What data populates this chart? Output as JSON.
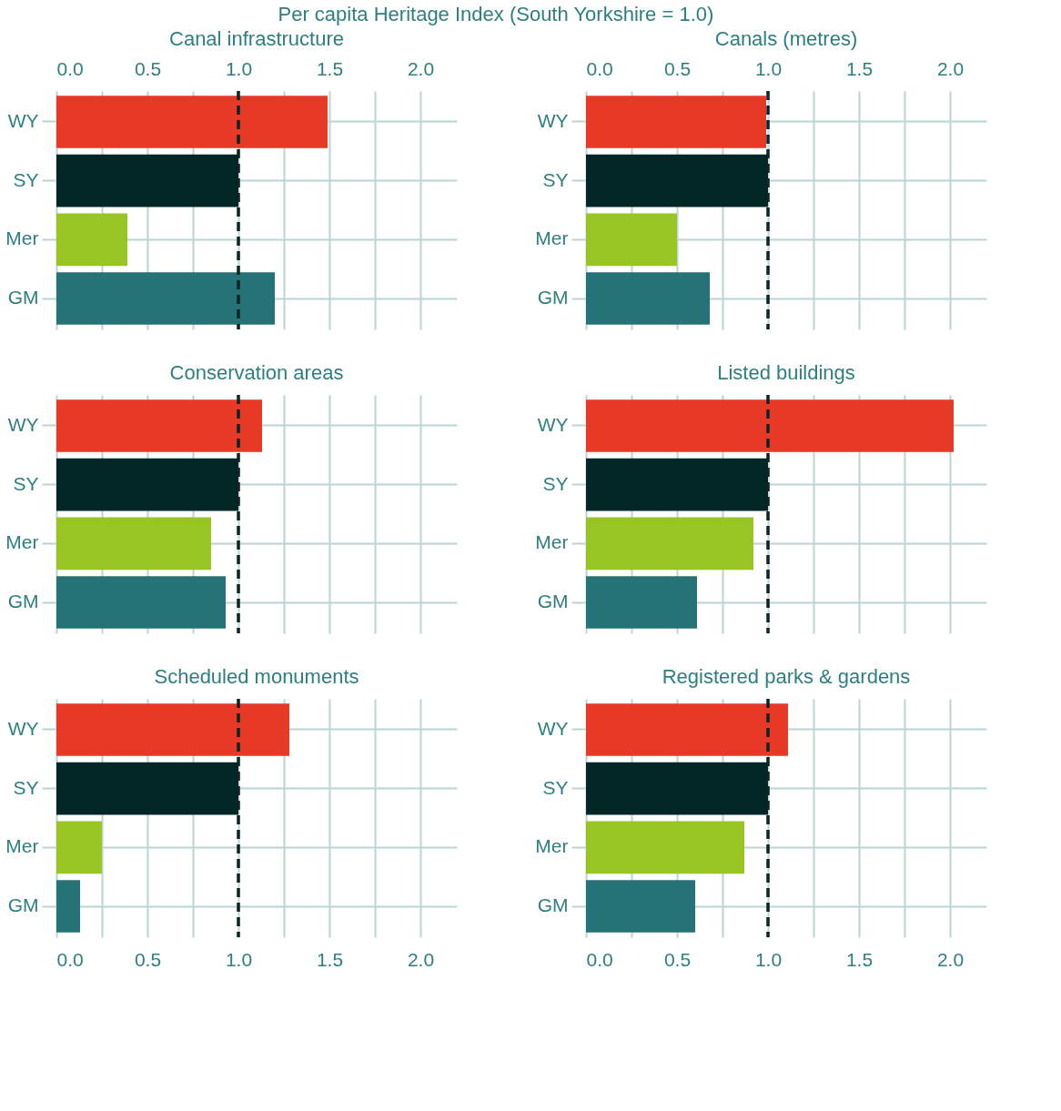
{
  "chart_data": [
    {
      "type": "bar",
      "orientation": "horizontal",
      "title": "Canal infrastructure",
      "annotations": [
        "Per capita Heritage Index (South Yorkshire = 1.0)"
      ],
      "categories": [
        "WY",
        "SY",
        "Mer",
        "GM"
      ],
      "values": [
        1.49,
        1.0,
        0.39,
        1.2
      ],
      "colors": [
        "#e63a27",
        "#022626",
        "#98c424",
        "#257377"
      ],
      "xlim": [
        0,
        2.2
      ],
      "xticks": [
        {
          "value": 0,
          "label": "0.0"
        },
        {
          "value": 0.25,
          "label": null
        },
        {
          "value": 0.5,
          "label": "0.5"
        },
        {
          "value": 0.75,
          "label": null
        },
        {
          "value": 1,
          "label": "1.0"
        },
        {
          "value": 1.25,
          "label": null
        },
        {
          "value": 1.5,
          "label": "1.5"
        },
        {
          "value": 1.75,
          "label": null
        },
        {
          "value": 2,
          "label": "2.0"
        }
      ],
      "ref_lines": [
        {
          "axis": "x",
          "value": 1,
          "color": "#0b2424",
          "line_style": "dashed"
        }
      ],
      "grid": true
    },
    {
      "type": "bar",
      "orientation": "horizontal",
      "title": "Canals (metres)",
      "categories": [
        "WY",
        "SY",
        "Mer",
        "GM"
      ],
      "values": [
        0.99,
        1.0,
        0.5,
        0.68
      ],
      "colors": [
        "#e63a27",
        "#022626",
        "#98c424",
        "#257377"
      ],
      "xlim": [
        0,
        2.2
      ],
      "xticks": [
        {
          "value": 0,
          "label": "0.0"
        },
        {
          "value": 0.25,
          "label": null
        },
        {
          "value": 0.5,
          "label": "0.5"
        },
        {
          "value": 0.75,
          "label": null
        },
        {
          "value": 1,
          "label": "1.0"
        },
        {
          "value": 1.25,
          "label": null
        },
        {
          "value": 1.5,
          "label": "1.5"
        },
        {
          "value": 1.75,
          "label": null
        },
        {
          "value": 2,
          "label": "2.0"
        }
      ],
      "ref_lines": [
        {
          "axis": "x",
          "value": 1,
          "color": "#0b2424",
          "line_style": "dashed"
        }
      ],
      "grid": true
    },
    {
      "type": "bar",
      "orientation": "horizontal",
      "title": "Conservation areas",
      "categories": [
        "WY",
        "SY",
        "Mer",
        "GM"
      ],
      "values": [
        1.13,
        1.0,
        0.85,
        0.93
      ],
      "colors": [
        "#e63a27",
        "#022626",
        "#98c424",
        "#257377"
      ],
      "xlim": [
        0,
        2.2
      ],
      "xticks": [
        {
          "value": 0,
          "label": null
        },
        {
          "value": 0.25,
          "label": null
        },
        {
          "value": 0.5,
          "label": null
        },
        {
          "value": 0.75,
          "label": null
        },
        {
          "value": 1,
          "label": null
        },
        {
          "value": 1.25,
          "label": null
        },
        {
          "value": 1.5,
          "label": null
        },
        {
          "value": 1.75,
          "label": null
        },
        {
          "value": 2,
          "label": null
        }
      ],
      "ref_lines": [
        {
          "axis": "x",
          "value": 1,
          "color": "#0b2424",
          "line_style": "dashed"
        }
      ],
      "grid": true,
      "tick_labels": "y"
    },
    {
      "type": "bar",
      "orientation": "horizontal",
      "title": "Listed buildings",
      "categories": [
        "WY",
        "SY",
        "Mer",
        "GM"
      ],
      "values": [
        2.02,
        1.0,
        0.92,
        0.61
      ],
      "colors": [
        "#e63a27",
        "#022626",
        "#98c424",
        "#257377"
      ],
      "xlim": [
        0,
        2.2
      ],
      "xticks": [
        {
          "value": 0,
          "label": null
        },
        {
          "value": 0.25,
          "label": null
        },
        {
          "value": 0.5,
          "label": null
        },
        {
          "value": 0.75,
          "label": null
        },
        {
          "value": 1,
          "label": null
        },
        {
          "value": 1.25,
          "label": null
        },
        {
          "value": 1.5,
          "label": null
        },
        {
          "value": 1.75,
          "label": null
        },
        {
          "value": 2,
          "label": null
        }
      ],
      "ref_lines": [
        {
          "axis": "x",
          "value": 1,
          "color": "#0b2424",
          "line_style": "dashed"
        }
      ],
      "grid": true,
      "tick_labels": "y"
    },
    {
      "type": "bar",
      "orientation": "horizontal",
      "title": "Scheduled monuments",
      "categories": [
        "WY",
        "SY",
        "Mer",
        "GM"
      ],
      "values": [
        1.28,
        1.0,
        0.25,
        0.13
      ],
      "colors": [
        "#e63a27",
        "#022626",
        "#98c424",
        "#257377"
      ],
      "xlim": [
        0,
        2.2
      ],
      "xticks": [
        {
          "value": 0,
          "label": "0.0"
        },
        {
          "value": 0.25,
          "label": null
        },
        {
          "value": 0.5,
          "label": "0.5"
        },
        {
          "value": 0.75,
          "label": null
        },
        {
          "value": 1,
          "label": "1.0"
        },
        {
          "value": 1.25,
          "label": null
        },
        {
          "value": 1.5,
          "label": "1.5"
        },
        {
          "value": 1.75,
          "label": null
        },
        {
          "value": 2,
          "label": "2.0"
        }
      ],
      "ref_lines": [
        {
          "axis": "x",
          "value": 1,
          "color": "#0b2424",
          "line_style": "dashed"
        }
      ],
      "grid": true
    },
    {
      "type": "bar",
      "orientation": "horizontal",
      "title": "Registered parks & gardens",
      "categories": [
        "WY",
        "SY",
        "Mer",
        "GM"
      ],
      "values": [
        1.11,
        1.0,
        0.87,
        0.6
      ],
      "colors": [
        "#e63a27",
        "#022626",
        "#98c424",
        "#257377"
      ],
      "xlim": [
        0,
        2.2
      ],
      "xticks": [
        {
          "value": 0,
          "label": "0.0"
        },
        {
          "value": 0.25,
          "label": null
        },
        {
          "value": 0.5,
          "label": "0.5"
        },
        {
          "value": 0.75,
          "label": null
        },
        {
          "value": 1,
          "label": "1.0"
        },
        {
          "value": 1.25,
          "label": null
        },
        {
          "value": 1.5,
          "label": "1.5"
        },
        {
          "value": 1.75,
          "label": null
        },
        {
          "value": 2,
          "label": "2.0"
        }
      ],
      "ref_lines": [
        {
          "axis": "x",
          "value": 1,
          "color": "#0b2424",
          "line_style": "dashed"
        }
      ],
      "grid": true
    }
  ]
}
